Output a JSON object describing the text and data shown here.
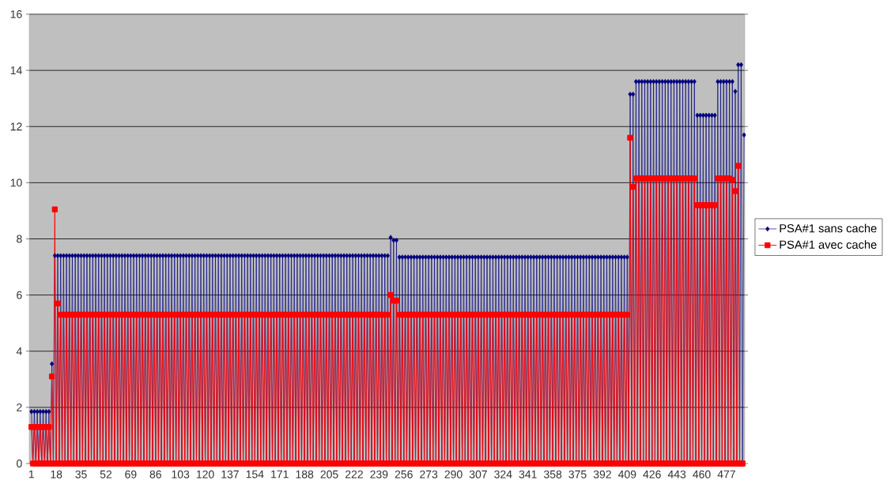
{
  "chart_data": {
    "type": "line",
    "x": [
      1,
      2,
      3,
      4,
      5,
      6,
      7,
      8,
      9,
      10,
      11,
      12,
      13,
      14,
      15,
      16,
      17,
      18,
      19,
      20,
      21,
      22,
      23,
      24,
      25,
      26,
      27,
      28,
      29,
      30,
      31,
      32,
      33,
      34,
      35,
      36,
      37,
      38,
      39,
      40,
      41,
      42,
      43,
      44,
      45,
      46,
      47,
      48,
      49,
      50,
      51,
      52,
      53,
      54,
      55,
      56,
      57,
      58,
      59,
      60,
      61,
      62,
      63,
      64,
      65,
      66,
      67,
      68,
      69,
      70,
      71,
      72,
      73,
      74,
      75,
      76,
      77,
      78,
      79,
      80,
      81,
      82,
      83,
      84,
      85,
      86,
      87,
      88,
      89,
      90,
      91,
      92,
      93,
      94,
      95,
      96,
      97,
      98,
      99,
      100,
      101,
      102,
      103,
      104,
      105,
      106,
      107,
      108,
      109,
      110,
      111,
      112,
      113,
      114,
      115,
      116,
      117,
      118,
      119,
      120,
      121,
      122,
      123,
      124,
      125,
      126,
      127,
      128,
      129,
      130,
      131,
      132,
      133,
      134,
      135,
      136,
      137,
      138,
      139,
      140,
      141,
      142,
      143,
      144,
      145,
      146,
      147,
      148,
      149,
      150,
      151,
      152,
      153,
      154,
      155,
      156,
      157,
      158,
      159,
      160,
      161,
      162,
      163,
      164,
      165,
      166,
      167,
      168,
      169,
      170,
      171,
      172,
      173,
      174,
      175,
      176,
      177,
      178,
      179,
      180,
      181,
      182,
      183,
      184,
      185,
      186,
      187,
      188,
      189,
      190,
      191,
      192,
      193,
      194,
      195,
      196,
      197,
      198,
      199,
      200,
      201,
      202,
      203,
      204,
      205,
      206,
      207,
      208,
      209,
      210,
      211,
      212,
      213,
      214,
      215,
      216,
      217,
      218,
      219,
      220,
      221,
      222,
      223,
      224,
      225,
      226,
      227,
      228,
      229,
      230,
      231,
      232,
      233,
      234,
      235,
      236,
      237,
      238,
      239,
      240,
      241,
      242,
      243,
      244,
      245,
      246,
      247,
      248,
      249,
      250,
      251,
      252,
      253,
      254,
      255,
      256,
      257,
      258,
      259,
      260,
      261,
      262,
      263,
      264,
      265,
      266,
      267,
      268,
      269,
      270,
      271,
      272,
      273,
      274,
      275,
      276,
      277,
      278,
      279,
      280,
      281,
      282,
      283,
      284,
      285,
      286,
      287,
      288,
      289,
      290,
      291,
      292,
      293,
      294,
      295,
      296,
      297,
      298,
      299,
      300,
      301,
      302,
      303,
      304,
      305,
      306,
      307,
      308,
      309,
      310,
      311,
      312,
      313,
      314,
      315,
      316,
      317,
      318,
      319,
      320,
      321,
      322,
      323,
      324,
      325,
      326,
      327,
      328,
      329,
      330,
      331,
      332,
      333,
      334,
      335,
      336,
      337,
      338,
      339,
      340,
      341,
      342,
      343,
      344,
      345,
      346,
      347,
      348,
      349,
      350,
      351,
      352,
      353,
      354,
      355,
      356,
      357,
      358,
      359,
      360,
      361,
      362,
      363,
      364,
      365,
      366,
      367,
      368,
      369,
      370,
      371,
      372,
      373,
      374,
      375,
      376,
      377,
      378,
      379,
      380,
      381,
      382,
      383,
      384,
      385,
      386,
      387,
      388,
      389,
      390,
      391,
      392,
      393,
      394,
      395,
      396,
      397,
      398,
      399,
      400,
      401,
      402,
      403,
      404,
      405,
      406,
      407,
      408,
      409,
      410,
      411,
      412,
      413,
      414,
      415,
      416,
      417,
      418,
      419,
      420,
      421,
      422,
      423,
      424,
      425,
      426,
      427,
      428,
      429,
      430,
      431,
      432,
      433,
      434,
      435,
      436,
      437,
      438,
      439,
      440,
      441,
      442,
      443,
      444,
      445,
      446,
      447,
      448,
      449,
      450,
      451,
      452,
      453,
      454,
      455,
      456,
      457,
      458,
      459,
      460,
      461,
      462,
      463,
      464,
      465,
      466,
      467,
      468,
      469,
      470,
      471,
      472,
      473,
      474,
      475,
      476,
      477,
      478,
      479,
      480,
      481,
      482,
      483,
      484,
      485,
      486,
      487,
      488,
      489
    ],
    "series": [
      {
        "name": "PSA#1 sans cache",
        "color": "#000080",
        "marker": "diamond",
        "values": [
          1.85,
          0,
          1.85,
          0,
          1.85,
          0,
          1.85,
          0,
          1.85,
          0,
          1.85,
          0,
          1.85,
          0,
          3.55,
          0,
          7.4,
          0,
          7.4,
          0,
          7.4,
          0,
          7.4,
          0,
          7.4,
          0,
          7.4,
          0,
          7.4,
          0,
          7.4,
          0,
          7.4,
          0,
          7.4,
          0,
          7.4,
          0,
          7.4,
          0,
          7.4,
          0,
          7.4,
          0,
          7.4,
          0,
          7.4,
          0,
          7.4,
          0,
          7.4,
          0,
          7.4,
          0,
          7.4,
          0,
          7.4,
          0,
          7.4,
          0,
          7.4,
          0,
          7.4,
          0,
          7.4,
          0,
          7.4,
          0,
          7.4,
          0,
          7.4,
          0,
          7.4,
          0,
          7.4,
          0,
          7.4,
          0,
          7.4,
          0,
          7.4,
          0,
          7.4,
          0,
          7.4,
          0,
          7.4,
          0,
          7.4,
          0,
          7.4,
          0,
          7.4,
          0,
          7.4,
          0,
          7.4,
          0,
          7.4,
          0,
          7.4,
          0,
          7.4,
          0,
          7.4,
          0,
          7.4,
          0,
          7.4,
          0,
          7.4,
          0,
          7.4,
          0,
          7.4,
          0,
          7.4,
          0,
          7.4,
          0,
          7.4,
          0,
          7.4,
          0,
          7.4,
          0,
          7.4,
          0,
          7.4,
          0,
          7.4,
          0,
          7.4,
          0,
          7.4,
          0,
          7.4,
          0,
          7.4,
          0,
          7.4,
          0,
          7.4,
          0,
          7.4,
          0,
          7.4,
          0,
          7.4,
          0,
          7.4,
          0,
          7.4,
          0,
          7.4,
          0,
          7.4,
          0,
          7.4,
          0,
          7.4,
          0,
          7.4,
          0,
          7.4,
          0,
          7.4,
          0,
          7.4,
          0,
          7.4,
          0,
          7.4,
          0,
          7.4,
          0,
          7.4,
          0,
          7.4,
          0,
          7.4,
          0,
          7.4,
          0,
          7.4,
          0,
          7.4,
          0,
          7.4,
          0,
          7.4,
          0,
          7.4,
          0,
          7.4,
          0,
          7.4,
          0,
          7.4,
          0,
          7.4,
          0,
          7.4,
          0,
          7.4,
          0,
          7.4,
          0,
          7.4,
          0,
          7.4,
          0,
          7.4,
          0,
          7.4,
          0,
          7.4,
          0,
          7.4,
          0,
          7.4,
          0,
          7.4,
          0,
          7.4,
          0,
          7.4,
          0,
          7.4,
          0,
          7.4,
          0,
          7.4,
          0,
          7.4,
          0,
          7.4,
          0,
          7.4,
          0,
          7.4,
          0,
          7.4,
          0,
          7.4,
          0,
          8.05,
          0,
          7.95,
          0,
          7.95,
          0,
          7.35,
          0,
          7.35,
          0,
          7.35,
          0,
          7.35,
          0,
          7.35,
          0,
          7.35,
          0,
          7.35,
          0,
          7.35,
          0,
          7.35,
          0,
          7.35,
          0,
          7.35,
          0,
          7.35,
          0,
          7.35,
          0,
          7.35,
          0,
          7.35,
          0,
          7.35,
          0,
          7.35,
          0,
          7.35,
          0,
          7.35,
          0,
          7.35,
          0,
          7.35,
          0,
          7.35,
          0,
          7.35,
          0,
          7.35,
          0,
          7.35,
          0,
          7.35,
          0,
          7.35,
          0,
          7.35,
          0,
          7.35,
          0,
          7.35,
          0,
          7.35,
          0,
          7.35,
          0,
          7.35,
          0,
          7.35,
          0,
          7.35,
          0,
          7.35,
          0,
          7.35,
          0,
          7.35,
          0,
          7.35,
          0,
          7.35,
          0,
          7.35,
          0,
          7.35,
          0,
          7.35,
          0,
          7.35,
          0,
          7.35,
          0,
          7.35,
          0,
          7.35,
          0,
          7.35,
          0,
          7.35,
          0,
          7.35,
          0,
          7.35,
          0,
          7.35,
          0,
          7.35,
          0,
          7.35,
          0,
          7.35,
          0,
          7.35,
          0,
          7.35,
          0,
          7.35,
          0,
          7.35,
          0,
          7.35,
          0,
          7.35,
          0,
          7.35,
          0,
          7.35,
          0,
          7.35,
          0,
          7.35,
          0,
          7.35,
          0,
          7.35,
          0,
          7.35,
          0,
          7.35,
          0,
          7.35,
          0,
          7.35,
          0,
          7.35,
          0,
          7.35,
          0,
          7.35,
          0,
          7.35,
          0,
          7.35,
          0,
          7.35,
          0,
          7.35,
          0,
          7.35,
          0,
          13.15,
          0,
          13.15,
          0,
          13.6,
          0,
          13.6,
          0,
          13.6,
          0,
          13.6,
          0,
          13.6,
          0,
          13.6,
          0,
          13.6,
          0,
          13.6,
          0,
          13.6,
          0,
          13.6,
          0,
          13.6,
          0,
          13.6,
          0,
          13.6,
          0,
          13.6,
          0,
          13.6,
          0,
          13.6,
          0,
          13.6,
          0,
          13.6,
          0,
          13.6,
          0,
          13.6,
          0,
          13.6,
          0,
          12.4,
          0,
          12.4,
          0,
          12.4,
          0,
          12.4,
          0,
          12.4,
          0,
          12.4,
          0,
          12.4,
          0,
          13.6,
          0,
          13.6,
          0,
          13.6,
          0,
          13.6,
          0,
          13.6,
          0,
          13.6,
          0,
          13.25,
          0,
          14.2,
          0,
          14.2,
          0,
          11.7
        ]
      },
      {
        "name": "PSA#1 avec cache",
        "color": "#ff0000",
        "marker": "square",
        "values": [
          1.3,
          0,
          1.3,
          0,
          1.3,
          0,
          1.3,
          0,
          1.3,
          0,
          1.3,
          0,
          1.3,
          0,
          3.1,
          0,
          9.05,
          0,
          5.7,
          0,
          5.3,
          0,
          5.3,
          0,
          5.3,
          0,
          5.3,
          0,
          5.3,
          0,
          5.3,
          0,
          5.3,
          0,
          5.3,
          0,
          5.3,
          0,
          5.3,
          0,
          5.3,
          0,
          5.3,
          0,
          5.3,
          0,
          5.3,
          0,
          5.3,
          0,
          5.3,
          0,
          5.3,
          0,
          5.3,
          0,
          5.3,
          0,
          5.3,
          0,
          5.3,
          0,
          5.3,
          0,
          5.3,
          0,
          5.3,
          0,
          5.3,
          0,
          5.3,
          0,
          5.3,
          0,
          5.3,
          0,
          5.3,
          0,
          5.3,
          0,
          5.3,
          0,
          5.3,
          0,
          5.3,
          0,
          5.3,
          0,
          5.3,
          0,
          5.3,
          0,
          5.3,
          0,
          5.3,
          0,
          5.3,
          0,
          5.3,
          0,
          5.3,
          0,
          5.3,
          0,
          5.3,
          0,
          5.3,
          0,
          5.3,
          0,
          5.3,
          0,
          5.3,
          0,
          5.3,
          0,
          5.3,
          0,
          5.3,
          0,
          5.3,
          0,
          5.3,
          0,
          5.3,
          0,
          5.3,
          0,
          5.3,
          0,
          5.3,
          0,
          5.3,
          0,
          5.3,
          0,
          5.3,
          0,
          5.3,
          0,
          5.3,
          0,
          5.3,
          0,
          5.3,
          0,
          5.3,
          0,
          5.3,
          0,
          5.3,
          0,
          5.3,
          0,
          5.3,
          0,
          5.3,
          0,
          5.3,
          0,
          5.3,
          0,
          5.3,
          0,
          5.3,
          0,
          5.3,
          0,
          5.3,
          0,
          5.3,
          0,
          5.3,
          0,
          5.3,
          0,
          5.3,
          0,
          5.3,
          0,
          5.3,
          0,
          5.3,
          0,
          5.3,
          0,
          5.3,
          0,
          5.3,
          0,
          5.3,
          0,
          5.3,
          0,
          5.3,
          0,
          5.3,
          0,
          5.3,
          0,
          5.3,
          0,
          5.3,
          0,
          5.3,
          0,
          5.3,
          0,
          5.3,
          0,
          5.3,
          0,
          5.3,
          0,
          5.3,
          0,
          5.3,
          0,
          5.3,
          0,
          5.3,
          0,
          5.3,
          0,
          5.3,
          0,
          5.3,
          0,
          5.3,
          0,
          5.3,
          0,
          5.3,
          0,
          5.3,
          0,
          5.3,
          0,
          5.3,
          0,
          5.3,
          0,
          5.3,
          0,
          5.3,
          0,
          6.0,
          0,
          5.8,
          0,
          5.8,
          0,
          5.3,
          0,
          5.3,
          0,
          5.3,
          0,
          5.3,
          0,
          5.3,
          0,
          5.3,
          0,
          5.3,
          0,
          5.3,
          0,
          5.3,
          0,
          5.3,
          0,
          5.3,
          0,
          5.3,
          0,
          5.3,
          0,
          5.3,
          0,
          5.3,
          0,
          5.3,
          0,
          5.3,
          0,
          5.3,
          0,
          5.3,
          0,
          5.3,
          0,
          5.3,
          0,
          5.3,
          0,
          5.3,
          0,
          5.3,
          0,
          5.3,
          0,
          5.3,
          0,
          5.3,
          0,
          5.3,
          0,
          5.3,
          0,
          5.3,
          0,
          5.3,
          0,
          5.3,
          0,
          5.3,
          0,
          5.3,
          0,
          5.3,
          0,
          5.3,
          0,
          5.3,
          0,
          5.3,
          0,
          5.3,
          0,
          5.3,
          0,
          5.3,
          0,
          5.3,
          0,
          5.3,
          0,
          5.3,
          0,
          5.3,
          0,
          5.3,
          0,
          5.3,
          0,
          5.3,
          0,
          5.3,
          0,
          5.3,
          0,
          5.3,
          0,
          5.3,
          0,
          5.3,
          0,
          5.3,
          0,
          5.3,
          0,
          5.3,
          0,
          5.3,
          0,
          5.3,
          0,
          5.3,
          0,
          5.3,
          0,
          5.3,
          0,
          5.3,
          0,
          5.3,
          0,
          5.3,
          0,
          5.3,
          0,
          5.3,
          0,
          5.3,
          0,
          5.3,
          0,
          5.3,
          0,
          5.3,
          0,
          5.3,
          0,
          5.3,
          0,
          5.3,
          0,
          5.3,
          0,
          5.3,
          0,
          5.3,
          0,
          5.3,
          0,
          5.3,
          0,
          5.3,
          0,
          11.6,
          0,
          9.85,
          0,
          10.15,
          0,
          10.15,
          0,
          10.15,
          0,
          10.15,
          0,
          10.15,
          0,
          10.15,
          0,
          10.15,
          0,
          10.15,
          0,
          10.15,
          0,
          10.15,
          0,
          10.15,
          0,
          10.15,
          0,
          10.15,
          0,
          10.15,
          0,
          10.15,
          0,
          10.15,
          0,
          10.15,
          0,
          10.15,
          0,
          10.15,
          0,
          10.15,
          0,
          10.15,
          0,
          9.2,
          0,
          9.2,
          0,
          9.2,
          0,
          9.2,
          0,
          9.2,
          0,
          9.2,
          0,
          9.2,
          0,
          10.15,
          0,
          10.15,
          0,
          10.15,
          0,
          10.15,
          0,
          10.15,
          0,
          10.1,
          0,
          9.7,
          0,
          10.6,
          0,
          0,
          0,
          null
        ]
      }
    ],
    "xlim": [
      -0.5,
      489.5
    ],
    "ylim": [
      0,
      16
    ],
    "xticks": [
      1,
      18,
      35,
      52,
      69,
      86,
      103,
      120,
      137,
      154,
      171,
      188,
      205,
      222,
      239,
      256,
      273,
      290,
      307,
      324,
      341,
      358,
      375,
      392,
      409,
      426,
      443,
      460,
      477
    ],
    "yticks": [
      0,
      2,
      4,
      6,
      8,
      10,
      12,
      14,
      16
    ],
    "grid": "y",
    "legend": "right",
    "line_style": "solid"
  }
}
